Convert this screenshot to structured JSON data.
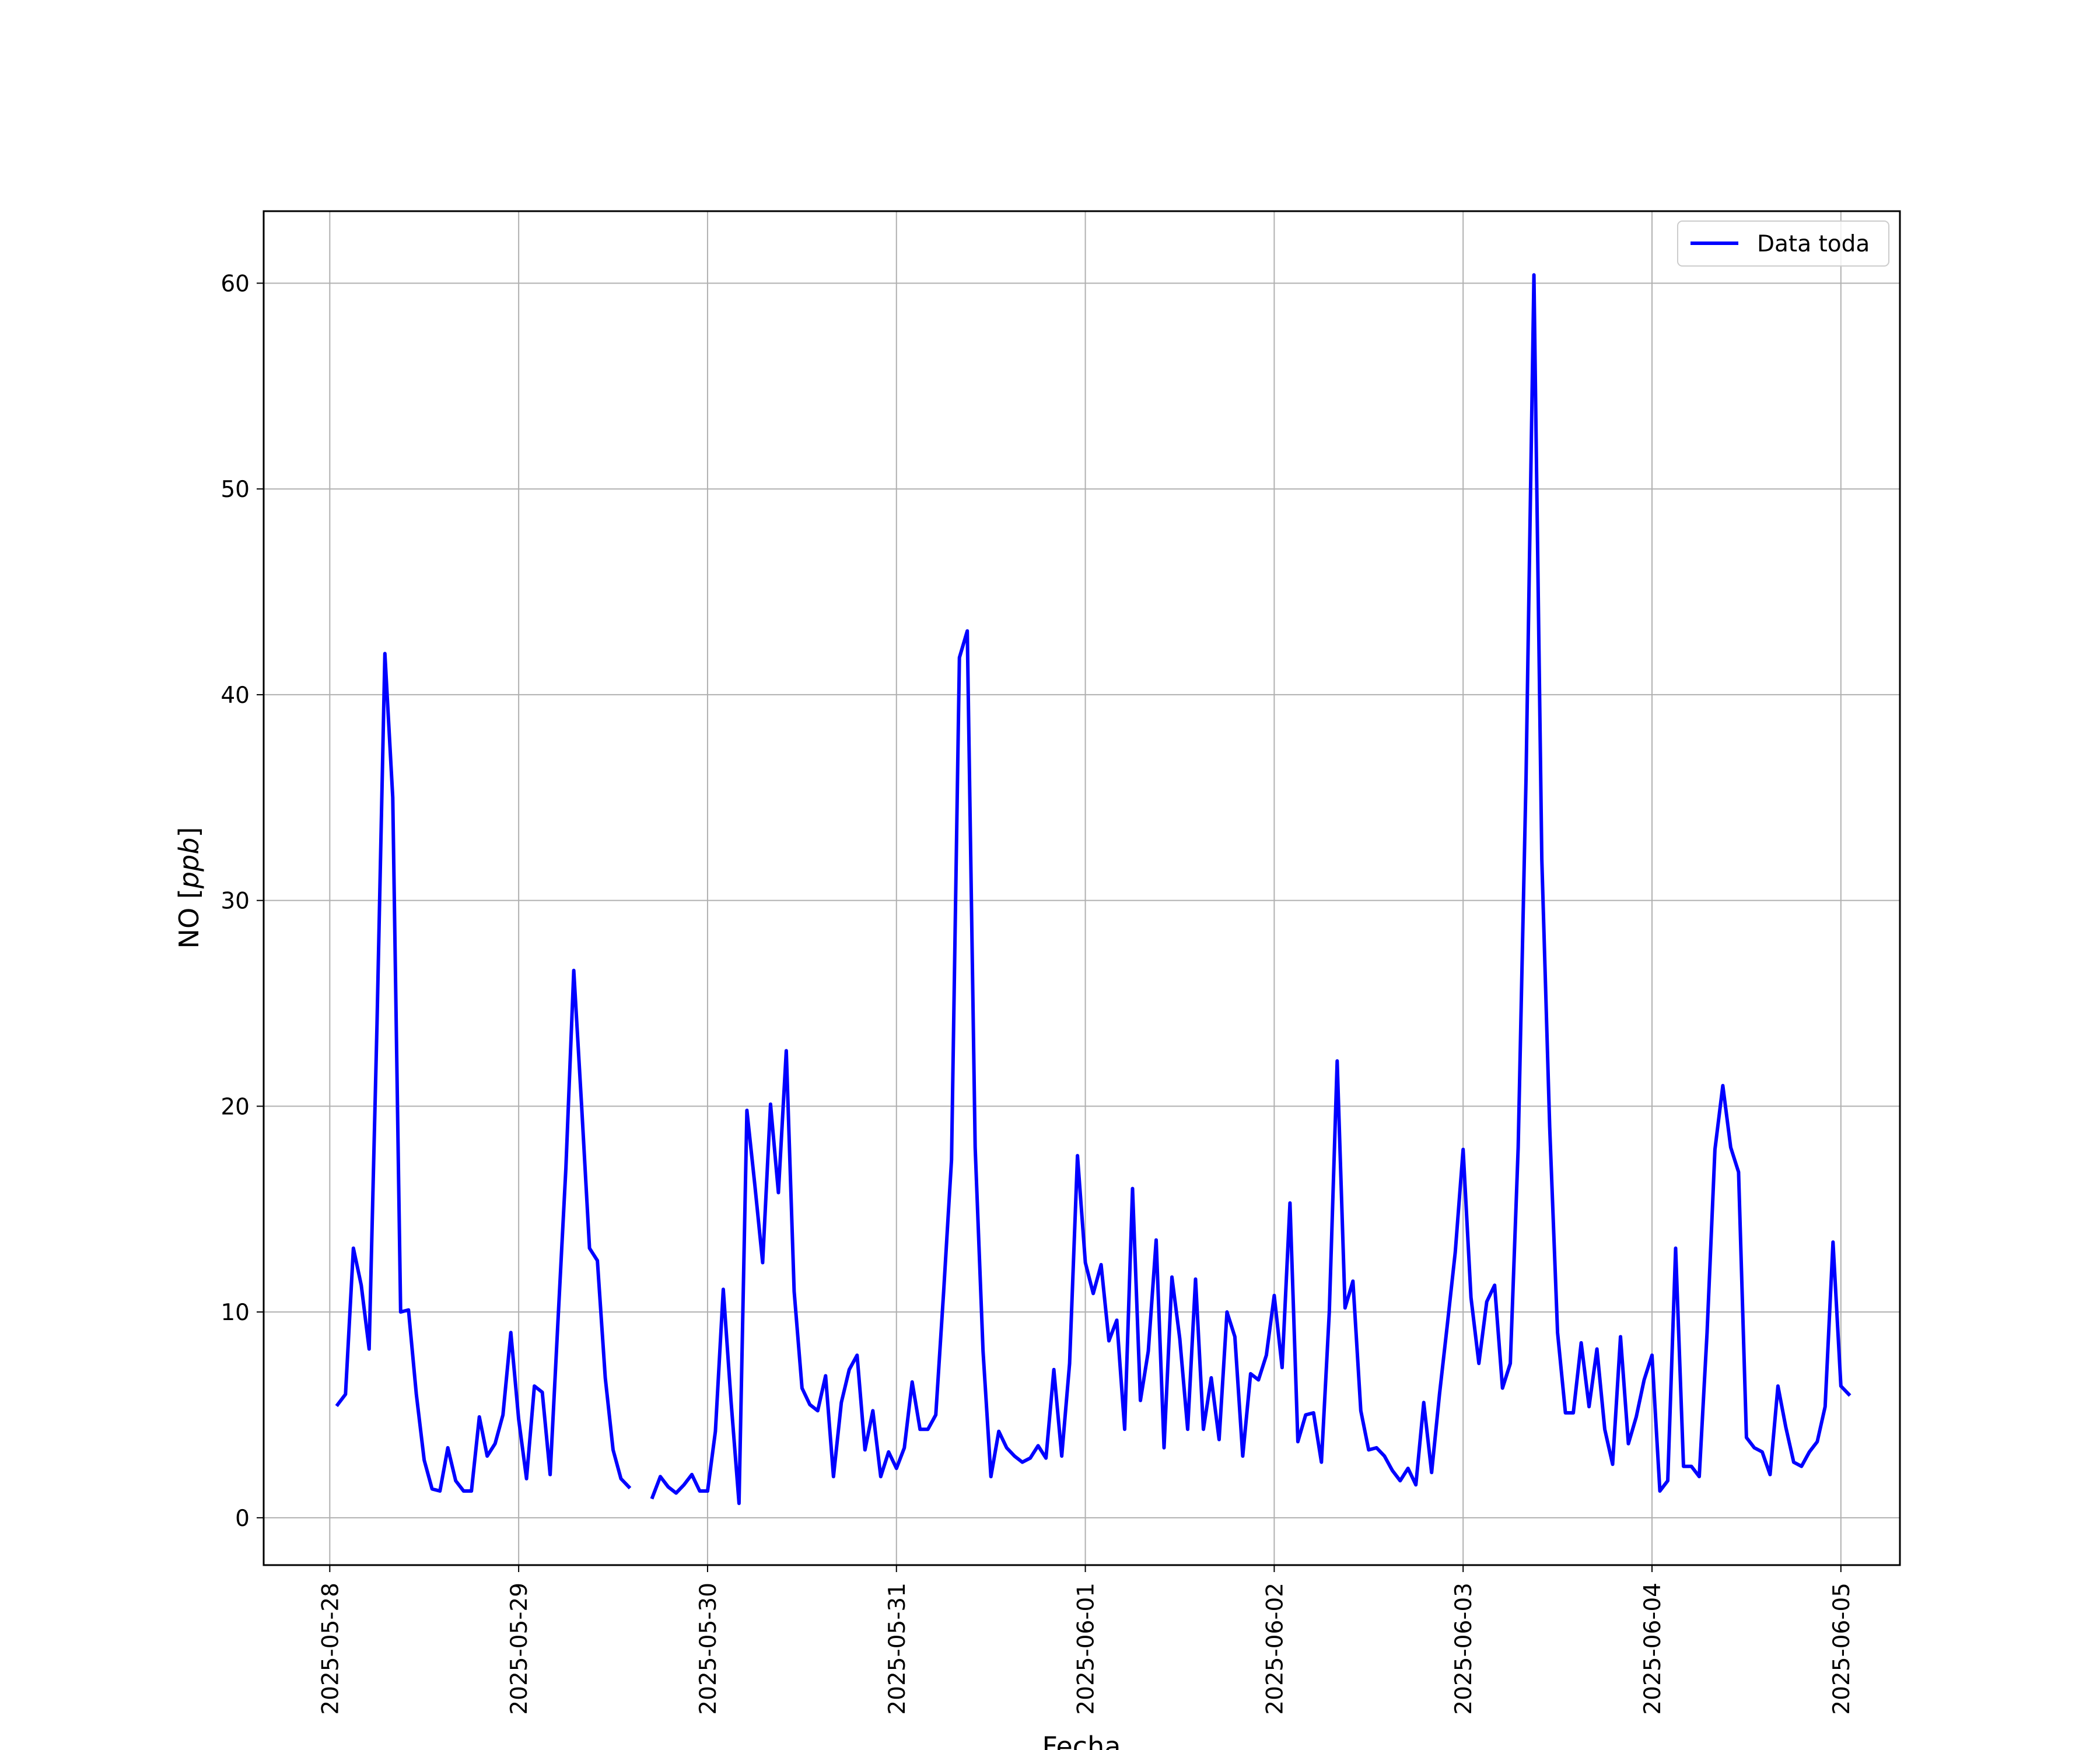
{
  "chart_data": {
    "type": "line",
    "xlabel": "Fecha",
    "ylabel_text": "NO [",
    "ylabel_unit": "ppb",
    "ylabel_close": "]",
    "ylim": [
      -2.3,
      63.5
    ],
    "xlim": [
      "2025-05-27T15:36",
      "2025-06-05T07:30"
    ],
    "grid": true,
    "legend_position": "top-right",
    "x_ticks": [
      "2025-05-28",
      "2025-05-29",
      "2025-05-30",
      "2025-05-31",
      "2025-06-01",
      "2025-06-02",
      "2025-06-03",
      "2025-06-04",
      "2025-06-05"
    ],
    "y_ticks": [
      0,
      10,
      20,
      30,
      40,
      50,
      60
    ],
    "colors": {
      "line": "#0000ff",
      "grid": "#b0b0b0",
      "axes": "#000000"
    },
    "series": [
      {
        "name": "Data toda",
        "start": "2025-05-28T01:00",
        "step_hours": 1,
        "values": [
          5.5,
          6.0,
          13.1,
          11.3,
          8.2,
          24.0,
          42.0,
          35.0,
          10.0,
          10.1,
          6.0,
          2.8,
          1.4,
          1.3,
          3.4,
          1.8,
          1.3,
          1.3,
          4.9,
          3.0,
          3.6,
          5.0,
          9.0,
          4.8,
          1.9,
          6.4,
          6.1,
          2.1,
          9.6,
          17.0,
          26.6,
          20.0,
          13.1,
          12.5,
          6.8,
          3.3,
          1.9,
          1.5,
          null,
          null,
          1.0,
          2.0,
          1.5,
          1.2,
          1.6,
          2.1,
          1.3,
          1.3,
          4.2,
          11.1,
          5.6,
          0.7,
          19.8,
          16.2,
          12.4,
          20.1,
          15.8,
          22.7,
          11.0,
          6.3,
          5.5,
          5.2,
          6.9,
          2.0,
          5.6,
          7.2,
          7.9,
          3.3,
          5.2,
          2.0,
          3.2,
          2.4,
          3.4,
          6.6,
          4.3,
          4.3,
          5.0,
          11.0,
          17.4,
          41.8,
          43.1,
          18.0,
          8.1,
          2.0,
          4.2,
          3.4,
          3.0,
          2.7,
          2.9,
          3.5,
          2.9,
          7.2,
          3.0,
          7.5,
          17.6,
          12.4,
          10.9,
          12.3,
          8.6,
          9.6,
          4.3,
          16.0,
          5.7,
          8.1,
          13.5,
          3.4,
          11.7,
          8.7,
          4.3,
          11.6,
          4.3,
          6.8,
          3.8,
          10.0,
          8.8,
          3.0,
          7.0,
          6.7,
          7.9,
          10.8,
          7.3,
          15.3,
          3.7,
          5.0,
          5.1,
          2.7,
          10.0,
          22.2,
          10.2,
          11.5,
          5.2,
          3.3,
          3.4,
          3.0,
          2.3,
          1.8,
          2.4,
          1.6,
          5.6,
          2.2,
          6.0,
          9.4,
          12.9,
          17.9,
          10.7,
          7.5,
          10.5,
          11.3,
          6.3,
          7.5,
          18.0,
          36.0,
          60.4,
          32.0,
          19.0,
          9.0,
          5.1,
          5.1,
          8.5,
          5.4,
          8.2,
          4.3,
          2.6,
          8.8,
          3.6,
          4.9,
          6.7,
          7.9,
          1.3,
          1.8,
          13.1,
          2.5,
          2.5,
          2.0,
          9.0,
          17.9,
          21.0,
          18.0,
          16.8,
          3.9,
          3.4,
          3.2,
          2.1,
          6.4,
          4.4,
          2.7,
          2.5,
          3.2,
          3.7,
          5.4,
          13.4,
          6.4,
          6.0
        ]
      }
    ]
  }
}
